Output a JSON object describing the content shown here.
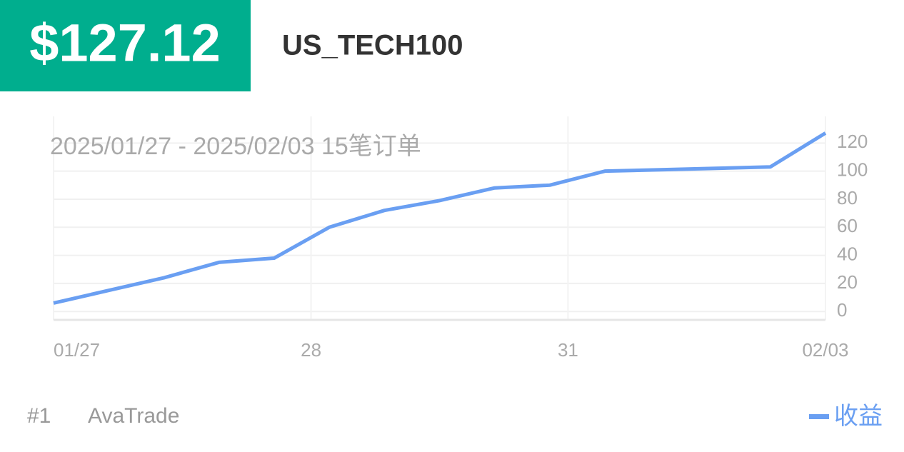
{
  "header": {
    "amount": "$127.12",
    "symbol": "US_TECH100"
  },
  "chart_data": {
    "type": "line",
    "subtitle": "2025/01/27 - 2025/02/03  15笔订单",
    "series": [
      {
        "name": "收益",
        "color": "#6a9ff2",
        "values": [
          6,
          15,
          24,
          35,
          38,
          60,
          72,
          79,
          88,
          90,
          100,
          101,
          102,
          103,
          127.12
        ]
      }
    ],
    "xlim": [
      0,
      14
    ],
    "xticks": [
      {
        "value": 0,
        "label": "01/27"
      },
      {
        "value": 4.67,
        "label": "28"
      },
      {
        "value": 9.33,
        "label": "31"
      },
      {
        "value": 14,
        "label": "02/03"
      }
    ],
    "ylim": [
      -6,
      139
    ],
    "yticks": [
      0,
      20,
      40,
      60,
      80,
      100,
      120
    ],
    "grid": true
  },
  "footer": {
    "rank": "#1",
    "broker": "AvaTrade"
  }
}
